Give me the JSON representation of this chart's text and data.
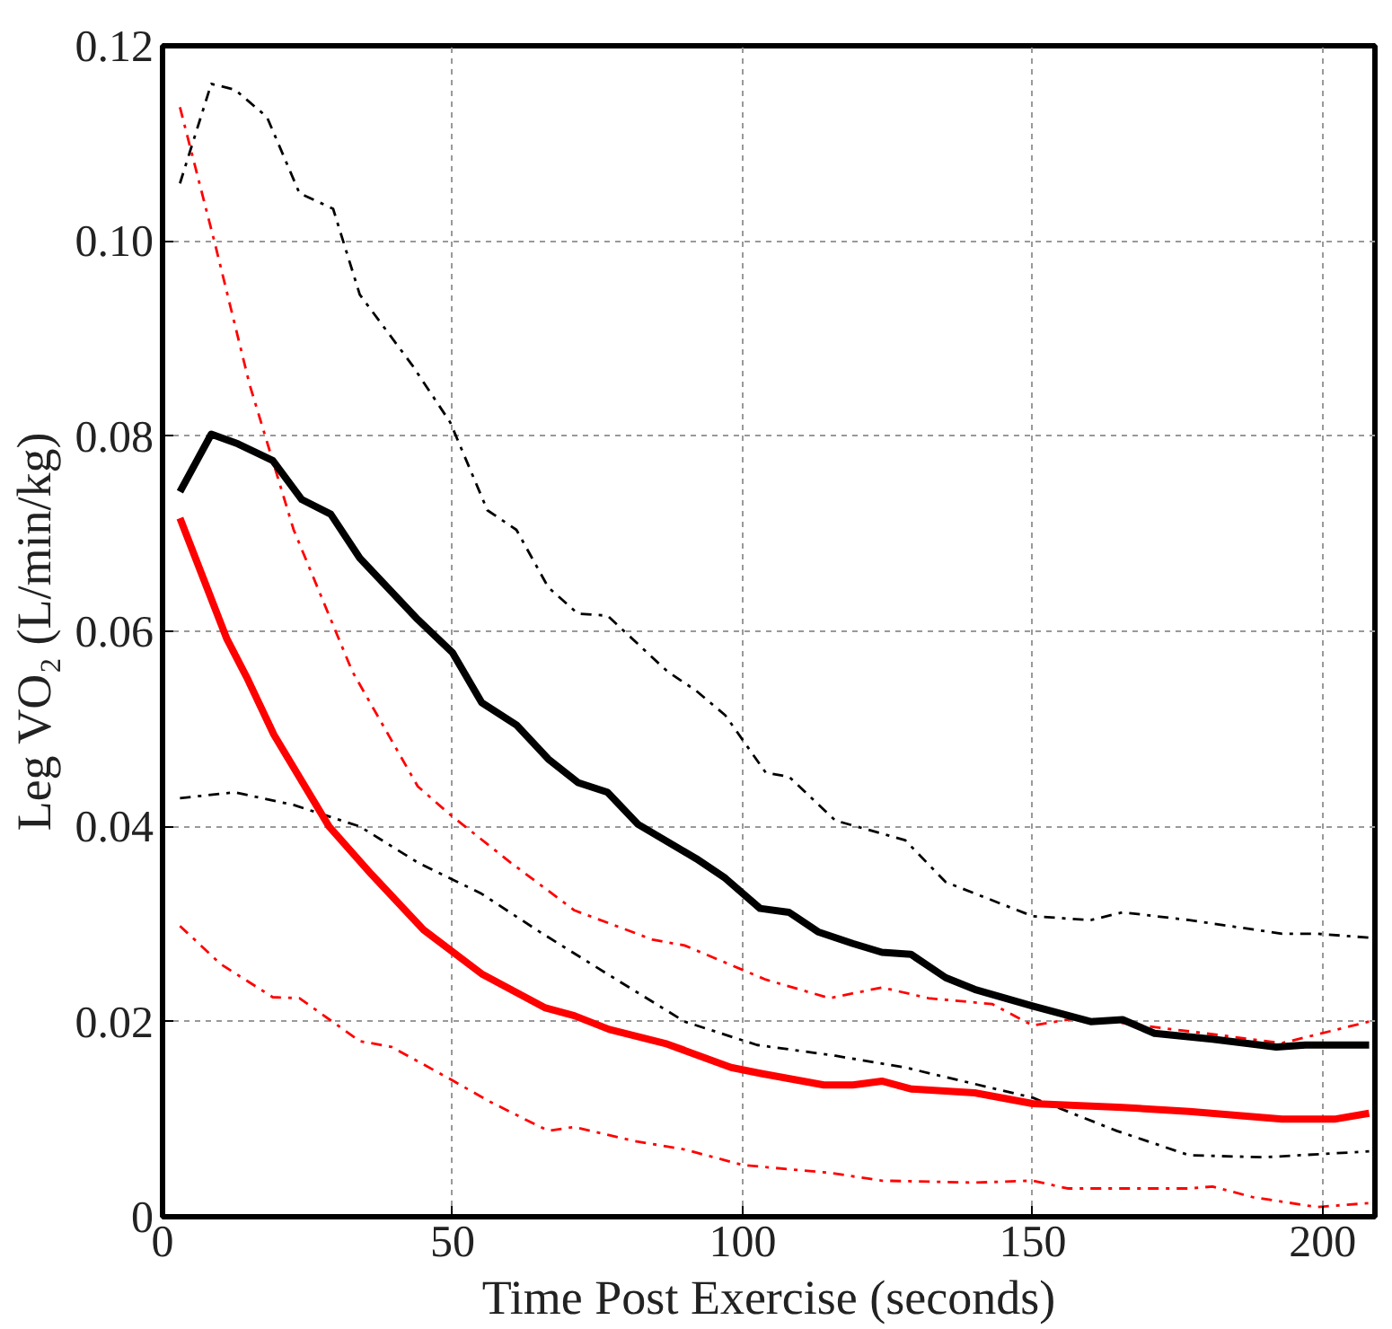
{
  "chart_data": {
    "type": "line",
    "xlabel": "Time Post Exercise (seconds)",
    "ylabel": "Leg VO₂ (L/min/kg)",
    "xlim": [
      0,
      209
    ],
    "ylim": [
      0,
      0.12
    ],
    "xticks": [
      0,
      50,
      100,
      150,
      200
    ],
    "yticks": [
      0,
      0.02,
      0.04,
      0.06,
      0.08,
      {
        "value": 0.1,
        "label": "0.10"
      },
      0.12
    ],
    "grid": true,
    "marker": "none",
    "series": [
      {
        "color": "#000000",
        "line_style": "dashed",
        "x": [
          3,
          8.4,
          12.5,
          18,
          23.6,
          29.4,
          34,
          43,
          49.6,
          56,
          61,
          66.5,
          71.6,
          76.7,
          87,
          92,
          97,
          104,
          108,
          116,
          128,
          135,
          150,
          160,
          165.5,
          177,
          193,
          199,
          208
        ],
        "values": [
          0.1059,
          0.1161,
          0.1155,
          0.1127,
          0.1049,
          0.1033,
          0.0945,
          0.0873,
          0.0814,
          0.0724,
          0.0704,
          0.0645,
          0.0618,
          0.0616,
          0.0559,
          0.0539,
          0.0514,
          0.0455,
          0.0451,
          0.0406,
          0.0386,
          0.0343,
          0.0308,
          0.0304,
          0.0312,
          0.0304,
          0.029,
          0.029,
          0.0286
        ]
      },
      {
        "color": "#000000",
        "line_style": "dashed",
        "x": [
          3,
          12.5,
          22.6,
          34,
          44,
          55,
          65,
          75,
          90,
          102.5,
          116,
          128,
          150,
          164.5,
          177,
          190,
          208
        ],
        "values": [
          0.0429,
          0.0435,
          0.0422,
          0.04,
          0.0363,
          0.0331,
          0.0292,
          0.0255,
          0.02,
          0.0176,
          0.0165,
          0.0153,
          0.0122,
          0.0088,
          0.0063,
          0.0061,
          0.0067
        ]
      },
      {
        "color": "#ff0000",
        "line_style": "dashed",
        "x": [
          3,
          9,
          15,
          22.6,
          32.7,
          44,
          49.6,
          60,
          71,
          84.5,
          90,
          104,
          115,
          124,
          132,
          143,
          150,
          158,
          177,
          193,
          208
        ],
        "values": [
          0.1137,
          0.0998,
          0.0853,
          0.0704,
          0.0559,
          0.0441,
          0.0412,
          0.0363,
          0.0314,
          0.0284,
          0.0278,
          0.0243,
          0.0224,
          0.0235,
          0.0224,
          0.0218,
          0.0196,
          0.0204,
          0.019,
          0.0178,
          0.02
        ]
      },
      {
        "color": "#ff0000",
        "line_style": "dashed",
        "x": [
          3,
          10,
          19,
          23.6,
          34,
          39.5,
          49.6,
          56.4,
          66.5,
          71,
          81,
          90,
          100,
          115,
          124,
          140,
          150,
          156,
          177,
          181,
          188,
          199,
          208
        ],
        "values": [
          0.0298,
          0.0259,
          0.0225,
          0.0224,
          0.018,
          0.0174,
          0.0141,
          0.0118,
          0.0088,
          0.0092,
          0.0078,
          0.0069,
          0.0053,
          0.0045,
          0.0037,
          0.0035,
          0.0037,
          0.0029,
          0.0029,
          0.0031,
          0.002,
          0.001,
          0.0014
        ]
      },
      {
        "color": "#000000",
        "line_style": "solid",
        "x": [
          3,
          8.4,
          13,
          19,
          24,
          29,
          34,
          44,
          50,
          55,
          61,
          66.5,
          71.6,
          76.7,
          82,
          92,
          97,
          103,
          108,
          113,
          119,
          124,
          129,
          135,
          140,
          150,
          160,
          165.5,
          171,
          181,
          192,
          197,
          208
        ],
        "values": [
          0.0743,
          0.0802,
          0.0792,
          0.0775,
          0.0735,
          0.072,
          0.0675,
          0.0612,
          0.0578,
          0.0527,
          0.0504,
          0.0469,
          0.0445,
          0.0435,
          0.0402,
          0.0367,
          0.0347,
          0.0316,
          0.0312,
          0.0292,
          0.028,
          0.0271,
          0.0269,
          0.0245,
          0.0233,
          0.0216,
          0.02,
          0.0202,
          0.0188,
          0.0182,
          0.0174,
          0.0176,
          0.0176
        ]
      },
      {
        "color": "#ff0000",
        "line_style": "solid",
        "x": [
          3,
          11.1,
          14.5,
          19.2,
          28.7,
          36,
          45,
          55,
          66,
          71,
          77,
          87,
          98,
          103,
          114,
          119,
          124,
          129,
          140,
          150,
          165.5,
          177,
          193,
          202,
          208
        ],
        "values": [
          0.0716,
          0.0592,
          0.0553,
          0.0494,
          0.04,
          0.0351,
          0.0294,
          0.0249,
          0.0214,
          0.0206,
          0.0192,
          0.0177,
          0.0153,
          0.0147,
          0.0135,
          0.0135,
          0.0139,
          0.0131,
          0.0127,
          0.0116,
          0.0112,
          0.0108,
          0.01,
          0.01,
          0.0106
        ]
      }
    ]
  }
}
